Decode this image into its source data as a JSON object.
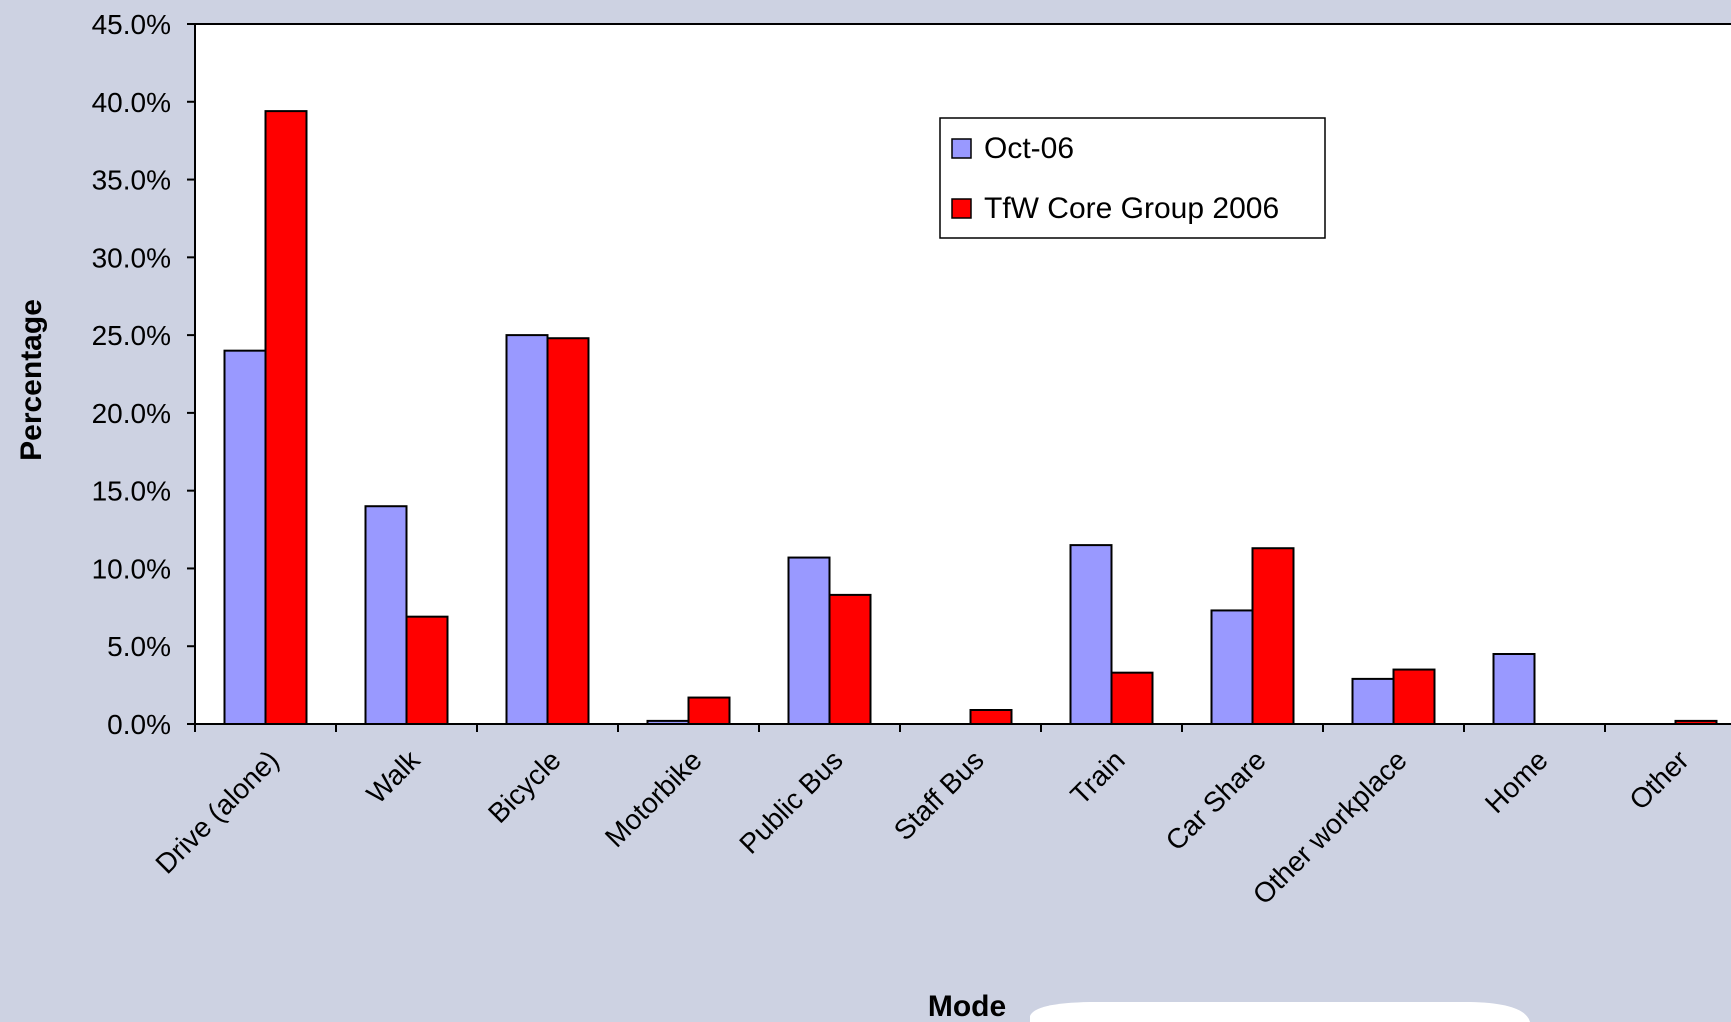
{
  "chart_data": {
    "type": "bar",
    "title": "",
    "xlabel": "Mode",
    "ylabel": "Percentage",
    "categories": [
      "Drive (alone)",
      "Walk",
      "Bicycle",
      "Motorbike",
      "Public Bus",
      "Staff Bus",
      "Train",
      "Car Share",
      "Other workplace",
      "Home",
      "Other"
    ],
    "series": [
      {
        "name": "Oct-06",
        "color": "#9999ff",
        "values": [
          24.0,
          14.0,
          25.0,
          0.2,
          10.7,
          0.0,
          11.5,
          7.3,
          2.9,
          4.5,
          0.0
        ]
      },
      {
        "name": "TfW Core Group 2006",
        "color": "#ff0000",
        "values": [
          39.4,
          6.9,
          24.8,
          1.7,
          8.3,
          0.9,
          3.3,
          11.3,
          3.5,
          0.0,
          0.2
        ]
      }
    ],
    "ylim": [
      0,
      45
    ],
    "yticks": [
      "0.0%",
      "5.0%",
      "10.0%",
      "15.0%",
      "20.0%",
      "25.0%",
      "30.0%",
      "35.0%",
      "40.0%",
      "45.0%"
    ],
    "grid": false,
    "legend_position": "top-right"
  },
  "colors": {
    "background": "#cdd2e2",
    "plot_area": "#ffffff",
    "axis": "#000000",
    "bottom_panel": "#ffffff"
  }
}
